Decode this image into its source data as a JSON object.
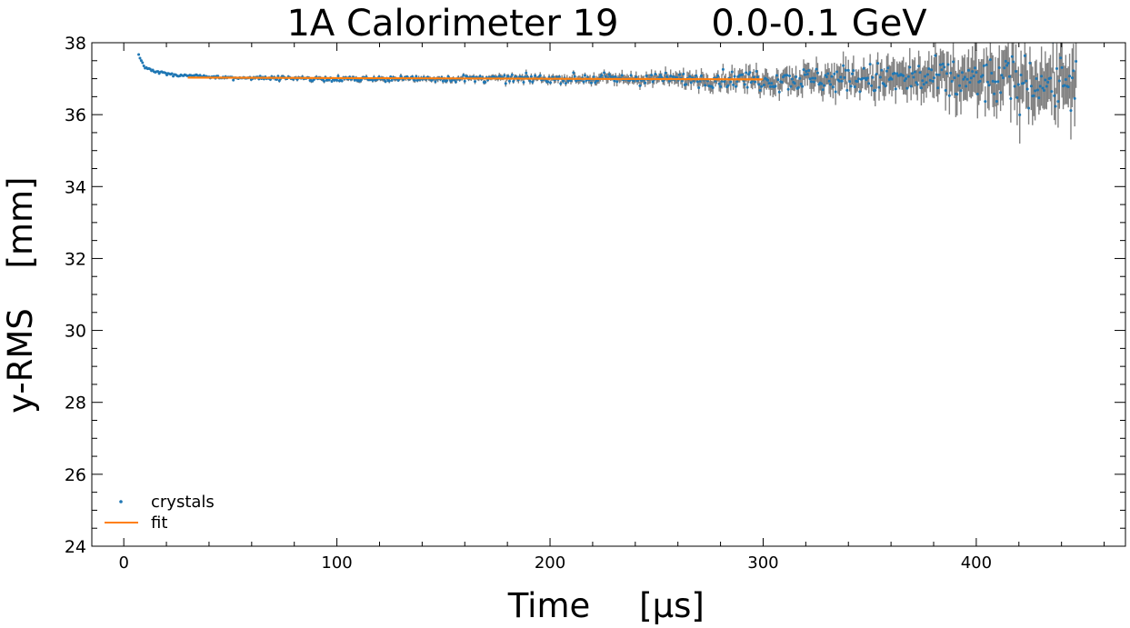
{
  "chart_data": {
    "type": "scatter",
    "title_left": "1A Calorimeter 19",
    "title_right": "0.0-0.1 GeV",
    "xlabel_left": "Time",
    "xlabel_right": "[μs]",
    "ylabel_left": "y-RMS",
    "ylabel_right": "[mm]",
    "xlim": [
      -15,
      470
    ],
    "ylim": [
      24,
      38
    ],
    "x_major_ticks": [
      0,
      100,
      200,
      300,
      400
    ],
    "x_minor_step": 20,
    "y_major_ticks": [
      24,
      26,
      28,
      30,
      32,
      34,
      36,
      38
    ],
    "y_minor_step": 0.5,
    "legend_position": "lower-left",
    "colors": {
      "points": "#1f77b4",
      "fit": "#ff7f0e",
      "errorbars": "#808080"
    },
    "series": [
      {
        "name": "crystals",
        "kind": "points-with-errorbars",
        "x_start": 7,
        "x_step": 0.6,
        "x_end": 447,
        "trend": [
          [
            7,
            37.65
          ],
          [
            10,
            37.3
          ],
          [
            15,
            37.2
          ],
          [
            25,
            37.1
          ],
          [
            50,
            37.02
          ],
          [
            100,
            37.0
          ],
          [
            200,
            37.0
          ],
          [
            300,
            36.98
          ],
          [
            350,
            37.0
          ],
          [
            400,
            36.95
          ],
          [
            447,
            36.9
          ]
        ],
        "scatter_envelope": [
          [
            7,
            0.02
          ],
          [
            100,
            0.05
          ],
          [
            200,
            0.08
          ],
          [
            260,
            0.12
          ],
          [
            300,
            0.2
          ],
          [
            350,
            0.3
          ],
          [
            400,
            0.45
          ],
          [
            447,
            0.6
          ]
        ],
        "errorbar_envelope": [
          [
            7,
            0.02
          ],
          [
            100,
            0.05
          ],
          [
            200,
            0.08
          ],
          [
            260,
            0.15
          ],
          [
            300,
            0.22
          ],
          [
            350,
            0.35
          ],
          [
            400,
            0.55
          ],
          [
            447,
            0.7
          ]
        ]
      },
      {
        "name": "fit",
        "kind": "line",
        "x": [
          30,
          300
        ],
        "y": [
          37.03,
          36.98
        ]
      }
    ]
  }
}
